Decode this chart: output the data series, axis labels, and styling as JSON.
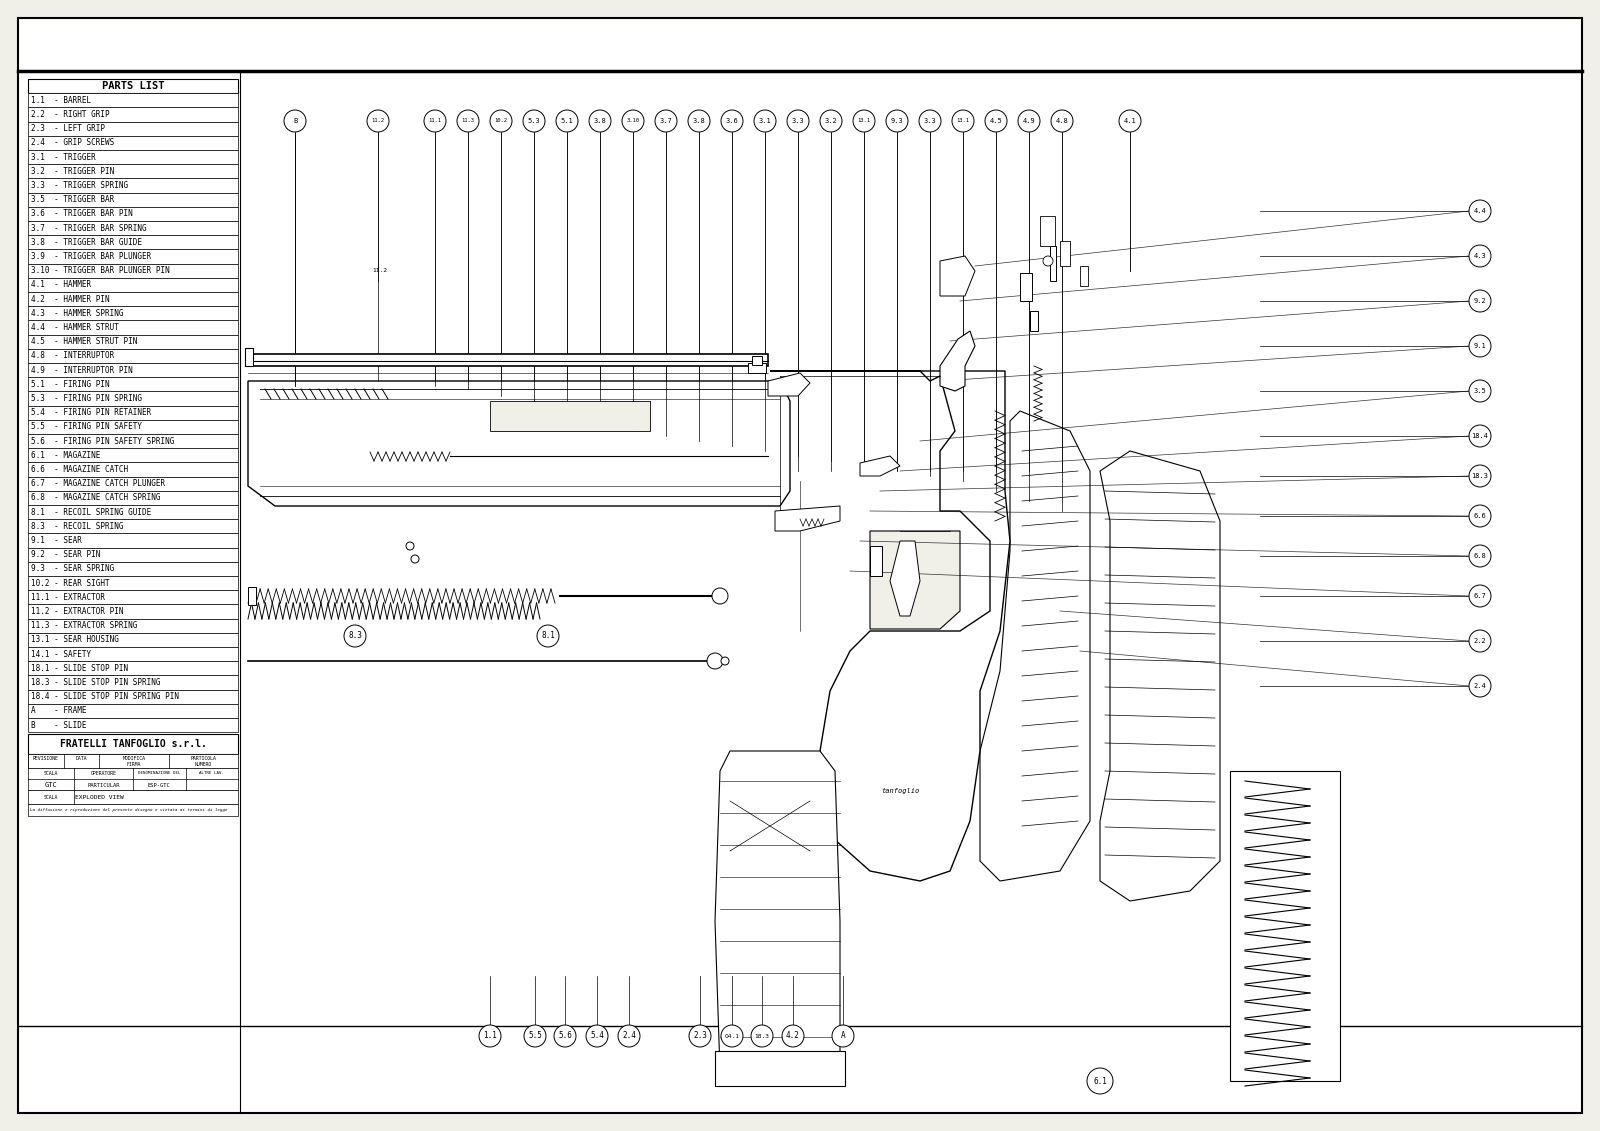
{
  "title": "PARTS LIST",
  "parts": [
    "1.1  - BARREL",
    "2.2  - RIGHT GRIP",
    "2.3  - LEFT GRIP",
    "2.4  - GRIP SCREWS",
    "3.1  - TRIGGER",
    "3.2  - TRIGGER PIN",
    "3.3  - TRIGGER SPRING",
    "3.5  - TRIGGER BAR",
    "3.6  - TRIGGER BAR PIN",
    "3.7  - TRIGGER BAR SPRING",
    "3.8  - TRIGGER BAR GUIDE",
    "3.9  - TRIGGER BAR PLUNGER",
    "3.10 - TRIGGER BAR PLUNGER PIN",
    "4.1  - HAMMER",
    "4.2  - HAMMER PIN",
    "4.3  - HAMMER SPRING",
    "4.4  - HAMMER STRUT",
    "4.5  - HAMMER STRUT PIN",
    "4.8  - INTERRUPTOR",
    "4.9  - INTERRUPTOR PIN",
    "5.1  - FIRING PIN",
    "5.3  - FIRING PIN SPRING",
    "5.4  - FIRING PIN RETAINER",
    "5.5  - FIRING PIN SAFETY",
    "5.6  - FIRING PIN SAFETY SPRING",
    "6.1  - MAGAZINE",
    "6.6  - MAGAZINE CATCH",
    "6.7  - MAGAZINE CATCH PLUNGER",
    "6.8  - MAGAZINE CATCH SPRING",
    "8.1  - RECOIL SPRING GUIDE",
    "8.3  - RECOIL SPRING",
    "9.1  - SEAR",
    "9.2  - SEAR PIN",
    "9.3  - SEAR SPRING",
    "10.2 - REAR SIGHT",
    "11.1 - EXTRACTOR",
    "11.2 - EXTRACTOR PIN",
    "11.3 - EXTRACTOR SPRING",
    "13.1 - SEAR HOUSING",
    "14.1 - SAFETY",
    "18.1 - SLIDE STOP PIN",
    "18.3 - SLIDE STOP PIN SPRING",
    "18.4 - SLIDE STOP PIN SPRING PIN",
    "A    - FRAME",
    "B    - SLIDE"
  ],
  "company": "FRATELLI TANFOGLIO s.r.l.",
  "drawing_title": "EXPLODED VIEW",
  "model": "PARTICULAR",
  "doc_num": "ESP-GTC",
  "scale": "GTC",
  "bg_color": "#f0f0e8",
  "line_color": "#000000",
  "table_bg": "#ffffff",
  "header_bg": "#ffffff",
  "font_color": "#000000",
  "border_color": "#000000",
  "top_callouts": [
    "11.1",
    "11.3",
    "10.2",
    "5.3",
    "5.1",
    "3.8",
    "3.10",
    "3.7",
    "3.8",
    "3.6",
    "3.1",
    "3.3",
    "3.2",
    "13.1",
    "9.3",
    "3.3",
    "13.1",
    "4.5",
    "4.9",
    "4.8"
  ],
  "right_callouts": [
    "4.4",
    "4.3",
    "9.2",
    "9.1",
    "3.5",
    "18.4",
    "18.3",
    "6.6",
    "6.8",
    "6.7",
    "2.2",
    "2.4"
  ],
  "bottom_callouts": [
    "1.1",
    "5.5",
    "5.6",
    "5.4",
    "2.4",
    "2.3",
    "O4.1",
    "18.3",
    "4.2",
    "A"
  ],
  "extra_top": [
    "B",
    "11.2",
    "4.1"
  ]
}
